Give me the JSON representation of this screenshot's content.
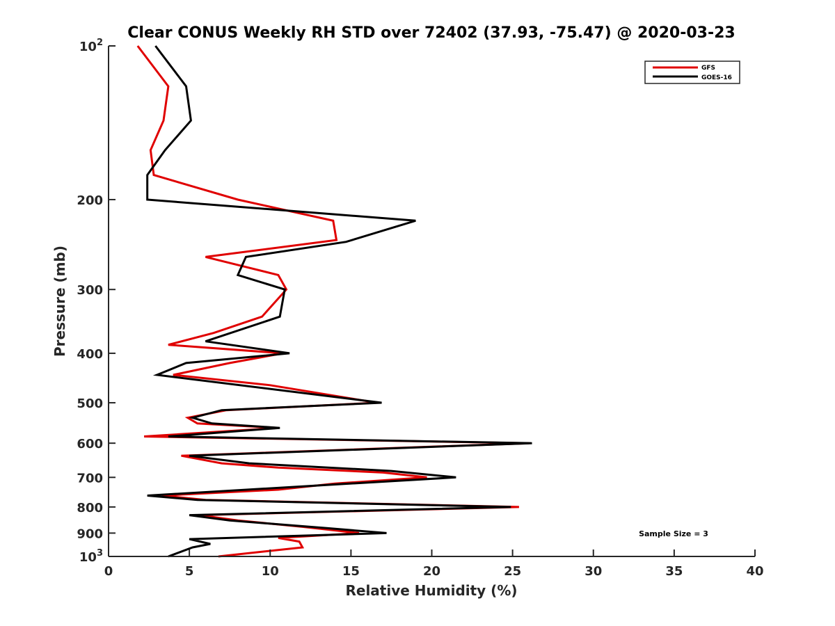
{
  "chart_data": {
    "type": "line",
    "title": "Clear CONUS Weekly RH STD over 72402 (37.93, -75.47) @ 2020-03-23",
    "xlabel": "Relative Humidity (%)",
    "ylabel": "Pressure (mb)",
    "xlim": [
      0,
      40
    ],
    "ylim": [
      100,
      1000
    ],
    "yscale": "log",
    "yreversed": true,
    "grid": false,
    "x_ticks": [
      0,
      5,
      10,
      15,
      20,
      25,
      30,
      35,
      40
    ],
    "x_tick_labels": [
      "0",
      "5",
      "10",
      "15",
      "20",
      "25",
      "30",
      "35",
      "40"
    ],
    "y_ticks": [
      100,
      200,
      300,
      400,
      500,
      600,
      700,
      800,
      900,
      1000
    ],
    "y_tick_labels": [
      {
        "base": "10",
        "exp": "2"
      },
      {
        "text": "200"
      },
      {
        "text": "300"
      },
      {
        "text": "400"
      },
      {
        "text": "500"
      },
      {
        "text": "600"
      },
      {
        "text": "700"
      },
      {
        "text": "800"
      },
      {
        "text": "900"
      },
      {
        "base": "10",
        "exp": "3"
      }
    ],
    "legend": {
      "placement": "top-right",
      "entries": [
        "GFS",
        "GOES-16"
      ]
    },
    "annotations": [
      "Sample Size = 3"
    ],
    "series": [
      {
        "name": "GFS",
        "color": "#e00000",
        "points": [
          [
            1.8,
            100
          ],
          [
            3.7,
            120
          ],
          [
            3.4,
            140
          ],
          [
            2.6,
            160
          ],
          [
            2.8,
            179
          ],
          [
            8.0,
            200
          ],
          [
            13.9,
            220
          ],
          [
            14.1,
            240
          ],
          [
            6.0,
            259
          ],
          [
            10.5,
            281
          ],
          [
            11.0,
            300
          ],
          [
            9.5,
            339
          ],
          [
            6.5,
            365
          ],
          [
            3.7,
            385
          ],
          [
            10.8,
            400
          ],
          [
            7.5,
            418
          ],
          [
            4.0,
            441
          ],
          [
            10.0,
            462
          ],
          [
            16.6,
            500
          ],
          [
            7.3,
            517
          ],
          [
            4.9,
            535
          ],
          [
            5.5,
            549
          ],
          [
            10.5,
            560
          ],
          [
            2.2,
            582
          ],
          [
            26.0,
            600
          ],
          [
            4.5,
            635
          ],
          [
            7.0,
            657
          ],
          [
            10.5,
            670
          ],
          [
            17.0,
            685
          ],
          [
            19.7,
            700
          ],
          [
            14.0,
            720
          ],
          [
            10.5,
            740
          ],
          [
            3.3,
            760
          ],
          [
            6.0,
            775
          ],
          [
            25.4,
            800
          ],
          [
            5.6,
            830
          ],
          [
            8.0,
            850
          ],
          [
            12.0,
            875
          ],
          [
            15.5,
            900
          ],
          [
            10.5,
            920
          ],
          [
            11.8,
            935
          ],
          [
            12.0,
            960
          ],
          [
            6.8,
            1000
          ]
        ]
      },
      {
        "name": "GOES-16",
        "color": "#000000",
        "points": [
          [
            2.9,
            100
          ],
          [
            4.8,
            120
          ],
          [
            5.1,
            140
          ],
          [
            3.5,
            160
          ],
          [
            2.4,
            179
          ],
          [
            2.4,
            200
          ],
          [
            19.0,
            220
          ],
          [
            14.7,
            242
          ],
          [
            8.5,
            259
          ],
          [
            8.0,
            281
          ],
          [
            10.9,
            300
          ],
          [
            10.6,
            339
          ],
          [
            6.0,
            379
          ],
          [
            11.2,
            400
          ],
          [
            4.8,
            418
          ],
          [
            3.0,
            441
          ],
          [
            16.9,
            500
          ],
          [
            7.0,
            517
          ],
          [
            5.2,
            535
          ],
          [
            6.4,
            549
          ],
          [
            10.6,
            560
          ],
          [
            3.7,
            582
          ],
          [
            26.2,
            600
          ],
          [
            5.0,
            635
          ],
          [
            8.7,
            657
          ],
          [
            17.5,
            680
          ],
          [
            21.5,
            700
          ],
          [
            13.3,
            725
          ],
          [
            2.4,
            760
          ],
          [
            5.5,
            775
          ],
          [
            24.9,
            800
          ],
          [
            5.0,
            830
          ],
          [
            7.5,
            850
          ],
          [
            13.5,
            880
          ],
          [
            17.2,
            900
          ],
          [
            5.0,
            925
          ],
          [
            6.3,
            945
          ],
          [
            5.2,
            960
          ],
          [
            3.7,
            1000
          ]
        ]
      }
    ]
  }
}
